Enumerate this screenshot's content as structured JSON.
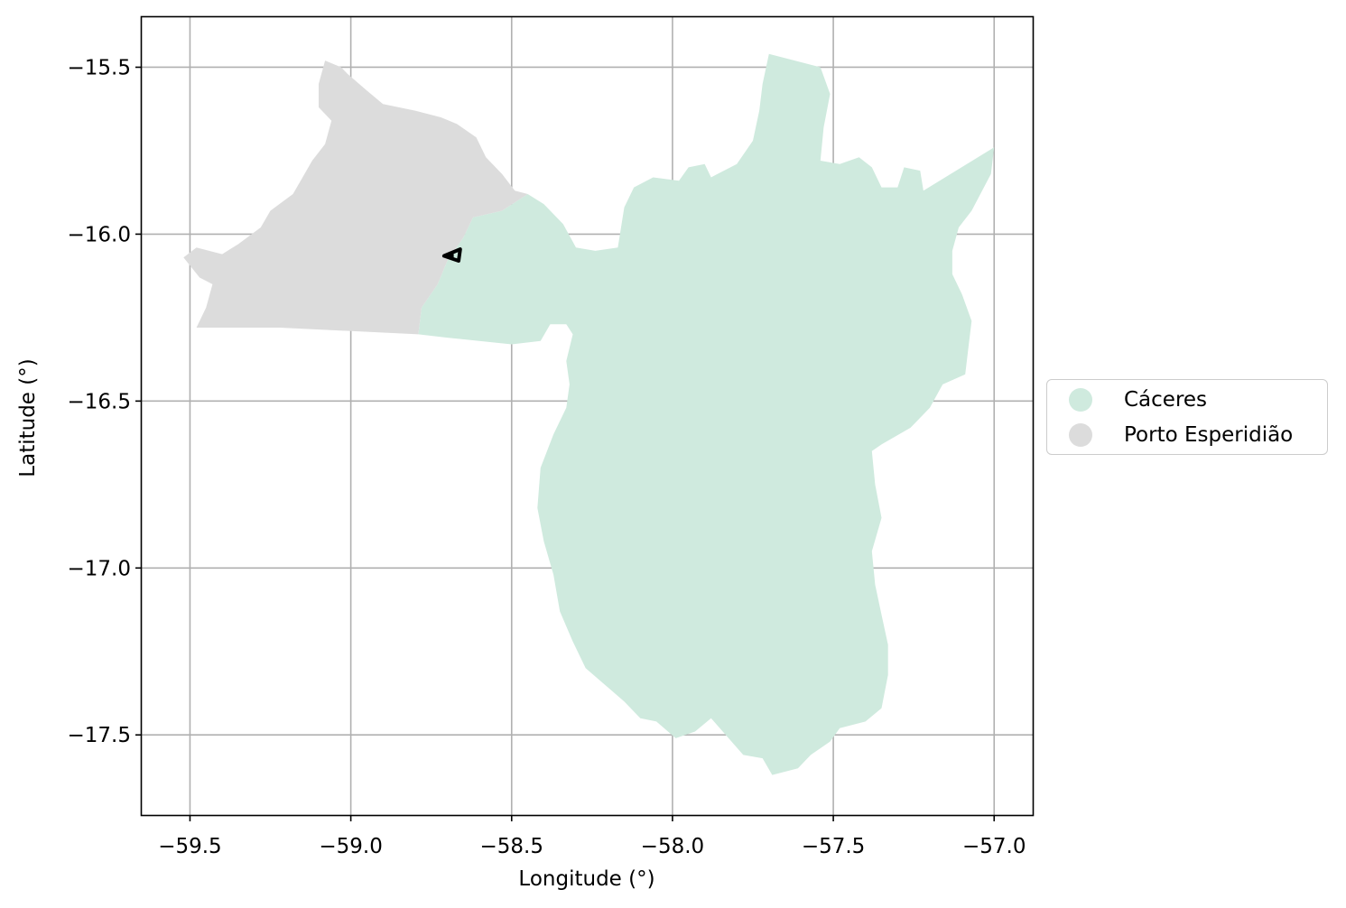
{
  "chart_data": {
    "type": "map",
    "xlabel": "Longitude (°)",
    "ylabel": "Latitude (°)",
    "xlim": [
      -59.65,
      -56.88
    ],
    "ylim": [
      -17.74,
      -15.35
    ],
    "xticks": [
      -59.5,
      -59.0,
      -58.5,
      -58.0,
      -57.5,
      -57.0
    ],
    "yticks": [
      -15.5,
      -16.0,
      -16.5,
      -17.0,
      -17.5
    ],
    "xtick_labels": [
      "−59.5",
      "−59.0",
      "−58.5",
      "−58.0",
      "−57.5",
      "−57.0"
    ],
    "ytick_labels": [
      "−15.5",
      "−16.0",
      "−16.5",
      "−17.0",
      "−17.5"
    ],
    "grid": true,
    "legend_position": "center-right outside",
    "regions": [
      {
        "name": "Cáceres",
        "color": "#cfeade",
        "coords": [
          [
            -57.7,
            -15.46
          ],
          [
            -57.54,
            -15.5
          ],
          [
            -57.51,
            -15.58
          ],
          [
            -57.53,
            -15.68
          ],
          [
            -57.54,
            -15.78
          ],
          [
            -57.48,
            -15.79
          ],
          [
            -57.42,
            -15.77
          ],
          [
            -57.38,
            -15.8
          ],
          [
            -57.35,
            -15.86
          ],
          [
            -57.3,
            -15.86
          ],
          [
            -57.28,
            -15.8
          ],
          [
            -57.23,
            -15.81
          ],
          [
            -57.22,
            -15.87
          ],
          [
            -57.0,
            -15.74
          ],
          [
            -57.01,
            -15.82
          ],
          [
            -57.07,
            -15.93
          ],
          [
            -57.11,
            -15.98
          ],
          [
            -57.13,
            -16.05
          ],
          [
            -57.13,
            -16.12
          ],
          [
            -57.1,
            -16.18
          ],
          [
            -57.07,
            -16.26
          ],
          [
            -57.08,
            -16.34
          ],
          [
            -57.09,
            -16.42
          ],
          [
            -57.16,
            -16.45
          ],
          [
            -57.2,
            -16.52
          ],
          [
            -57.26,
            -16.58
          ],
          [
            -57.35,
            -16.63
          ],
          [
            -57.38,
            -16.65
          ],
          [
            -57.37,
            -16.75
          ],
          [
            -57.35,
            -16.85
          ],
          [
            -57.38,
            -16.95
          ],
          [
            -57.37,
            -17.05
          ],
          [
            -57.35,
            -17.14
          ],
          [
            -57.33,
            -17.23
          ],
          [
            -57.33,
            -17.32
          ],
          [
            -57.35,
            -17.42
          ],
          [
            -57.4,
            -17.46
          ],
          [
            -57.48,
            -17.48
          ],
          [
            -57.51,
            -17.52
          ],
          [
            -57.57,
            -17.56
          ],
          [
            -57.61,
            -17.6
          ],
          [
            -57.69,
            -17.62
          ],
          [
            -57.72,
            -17.57
          ],
          [
            -57.78,
            -17.56
          ],
          [
            -57.88,
            -17.45
          ],
          [
            -57.93,
            -17.49
          ],
          [
            -57.99,
            -17.51
          ],
          [
            -58.05,
            -17.46
          ],
          [
            -58.1,
            -17.45
          ],
          [
            -58.15,
            -17.4
          ],
          [
            -58.21,
            -17.35
          ],
          [
            -58.27,
            -17.3
          ],
          [
            -58.31,
            -17.22
          ],
          [
            -58.35,
            -17.13
          ],
          [
            -58.37,
            -17.02
          ],
          [
            -58.4,
            -16.92
          ],
          [
            -58.42,
            -16.82
          ],
          [
            -58.41,
            -16.7
          ],
          [
            -58.37,
            -16.6
          ],
          [
            -58.33,
            -16.52
          ],
          [
            -58.32,
            -16.45
          ],
          [
            -58.33,
            -16.38
          ],
          [
            -58.31,
            -16.3
          ],
          [
            -58.33,
            -16.27
          ],
          [
            -58.38,
            -16.27
          ],
          [
            -58.41,
            -16.32
          ],
          [
            -58.5,
            -16.33
          ],
          [
            -58.7,
            -16.31
          ],
          [
            -58.79,
            -16.3
          ],
          [
            -58.78,
            -16.22
          ],
          [
            -58.73,
            -16.15
          ],
          [
            -58.7,
            -16.08
          ],
          [
            -58.65,
            -16.01
          ],
          [
            -58.62,
            -15.95
          ],
          [
            -58.53,
            -15.93
          ],
          [
            -58.45,
            -15.88
          ],
          [
            -58.4,
            -15.91
          ],
          [
            -58.34,
            -15.97
          ],
          [
            -58.3,
            -16.04
          ],
          [
            -58.24,
            -16.05
          ],
          [
            -58.17,
            -16.04
          ],
          [
            -58.15,
            -15.92
          ],
          [
            -58.12,
            -15.86
          ],
          [
            -58.06,
            -15.83
          ],
          [
            -57.98,
            -15.84
          ],
          [
            -57.95,
            -15.8
          ],
          [
            -57.9,
            -15.79
          ],
          [
            -57.88,
            -15.83
          ],
          [
            -57.86,
            -15.82
          ],
          [
            -57.8,
            -15.79
          ],
          [
            -57.75,
            -15.72
          ],
          [
            -57.73,
            -15.63
          ],
          [
            -57.72,
            -15.55
          ]
        ]
      },
      {
        "name": "Porto Esperidião",
        "color": "#dcdcdc",
        "coords": [
          [
            -59.08,
            -15.48
          ],
          [
            -59.03,
            -15.5
          ],
          [
            -59.01,
            -15.52
          ],
          [
            -58.95,
            -15.57
          ],
          [
            -58.9,
            -15.61
          ],
          [
            -58.8,
            -15.63
          ],
          [
            -58.72,
            -15.65
          ],
          [
            -58.67,
            -15.67
          ],
          [
            -58.61,
            -15.71
          ],
          [
            -58.58,
            -15.77
          ],
          [
            -58.53,
            -15.82
          ],
          [
            -58.49,
            -15.87
          ],
          [
            -58.45,
            -15.88
          ],
          [
            -58.53,
            -15.93
          ],
          [
            -58.62,
            -15.95
          ],
          [
            -58.65,
            -16.01
          ],
          [
            -58.7,
            -16.08
          ],
          [
            -58.73,
            -16.15
          ],
          [
            -58.78,
            -16.22
          ],
          [
            -58.79,
            -16.3
          ],
          [
            -59.22,
            -16.28
          ],
          [
            -59.48,
            -16.28
          ],
          [
            -59.45,
            -16.22
          ],
          [
            -59.43,
            -16.15
          ],
          [
            -59.47,
            -16.13
          ],
          [
            -59.52,
            -16.07
          ],
          [
            -59.48,
            -16.04
          ],
          [
            -59.4,
            -16.06
          ],
          [
            -59.35,
            -16.03
          ],
          [
            -59.28,
            -15.98
          ],
          [
            -59.25,
            -15.93
          ],
          [
            -59.18,
            -15.88
          ],
          [
            -59.15,
            -15.83
          ],
          [
            -59.12,
            -15.78
          ],
          [
            -59.08,
            -15.73
          ],
          [
            -59.06,
            -15.66
          ],
          [
            -59.1,
            -15.62
          ],
          [
            -59.1,
            -15.55
          ]
        ]
      }
    ],
    "outline_marker": {
      "color": "#000000",
      "coords": [
        [
          -58.71,
          -16.065
        ],
        [
          -58.66,
          -16.045
        ],
        [
          -58.665,
          -16.08
        ],
        [
          -58.71,
          -16.065
        ],
        [
          -58.68,
          -16.065
        ]
      ]
    }
  },
  "legend": {
    "items": [
      {
        "label": "Cáceres",
        "color": "#cfeade"
      },
      {
        "label": "Porto Esperidião",
        "color": "#dcdcdc"
      }
    ]
  }
}
